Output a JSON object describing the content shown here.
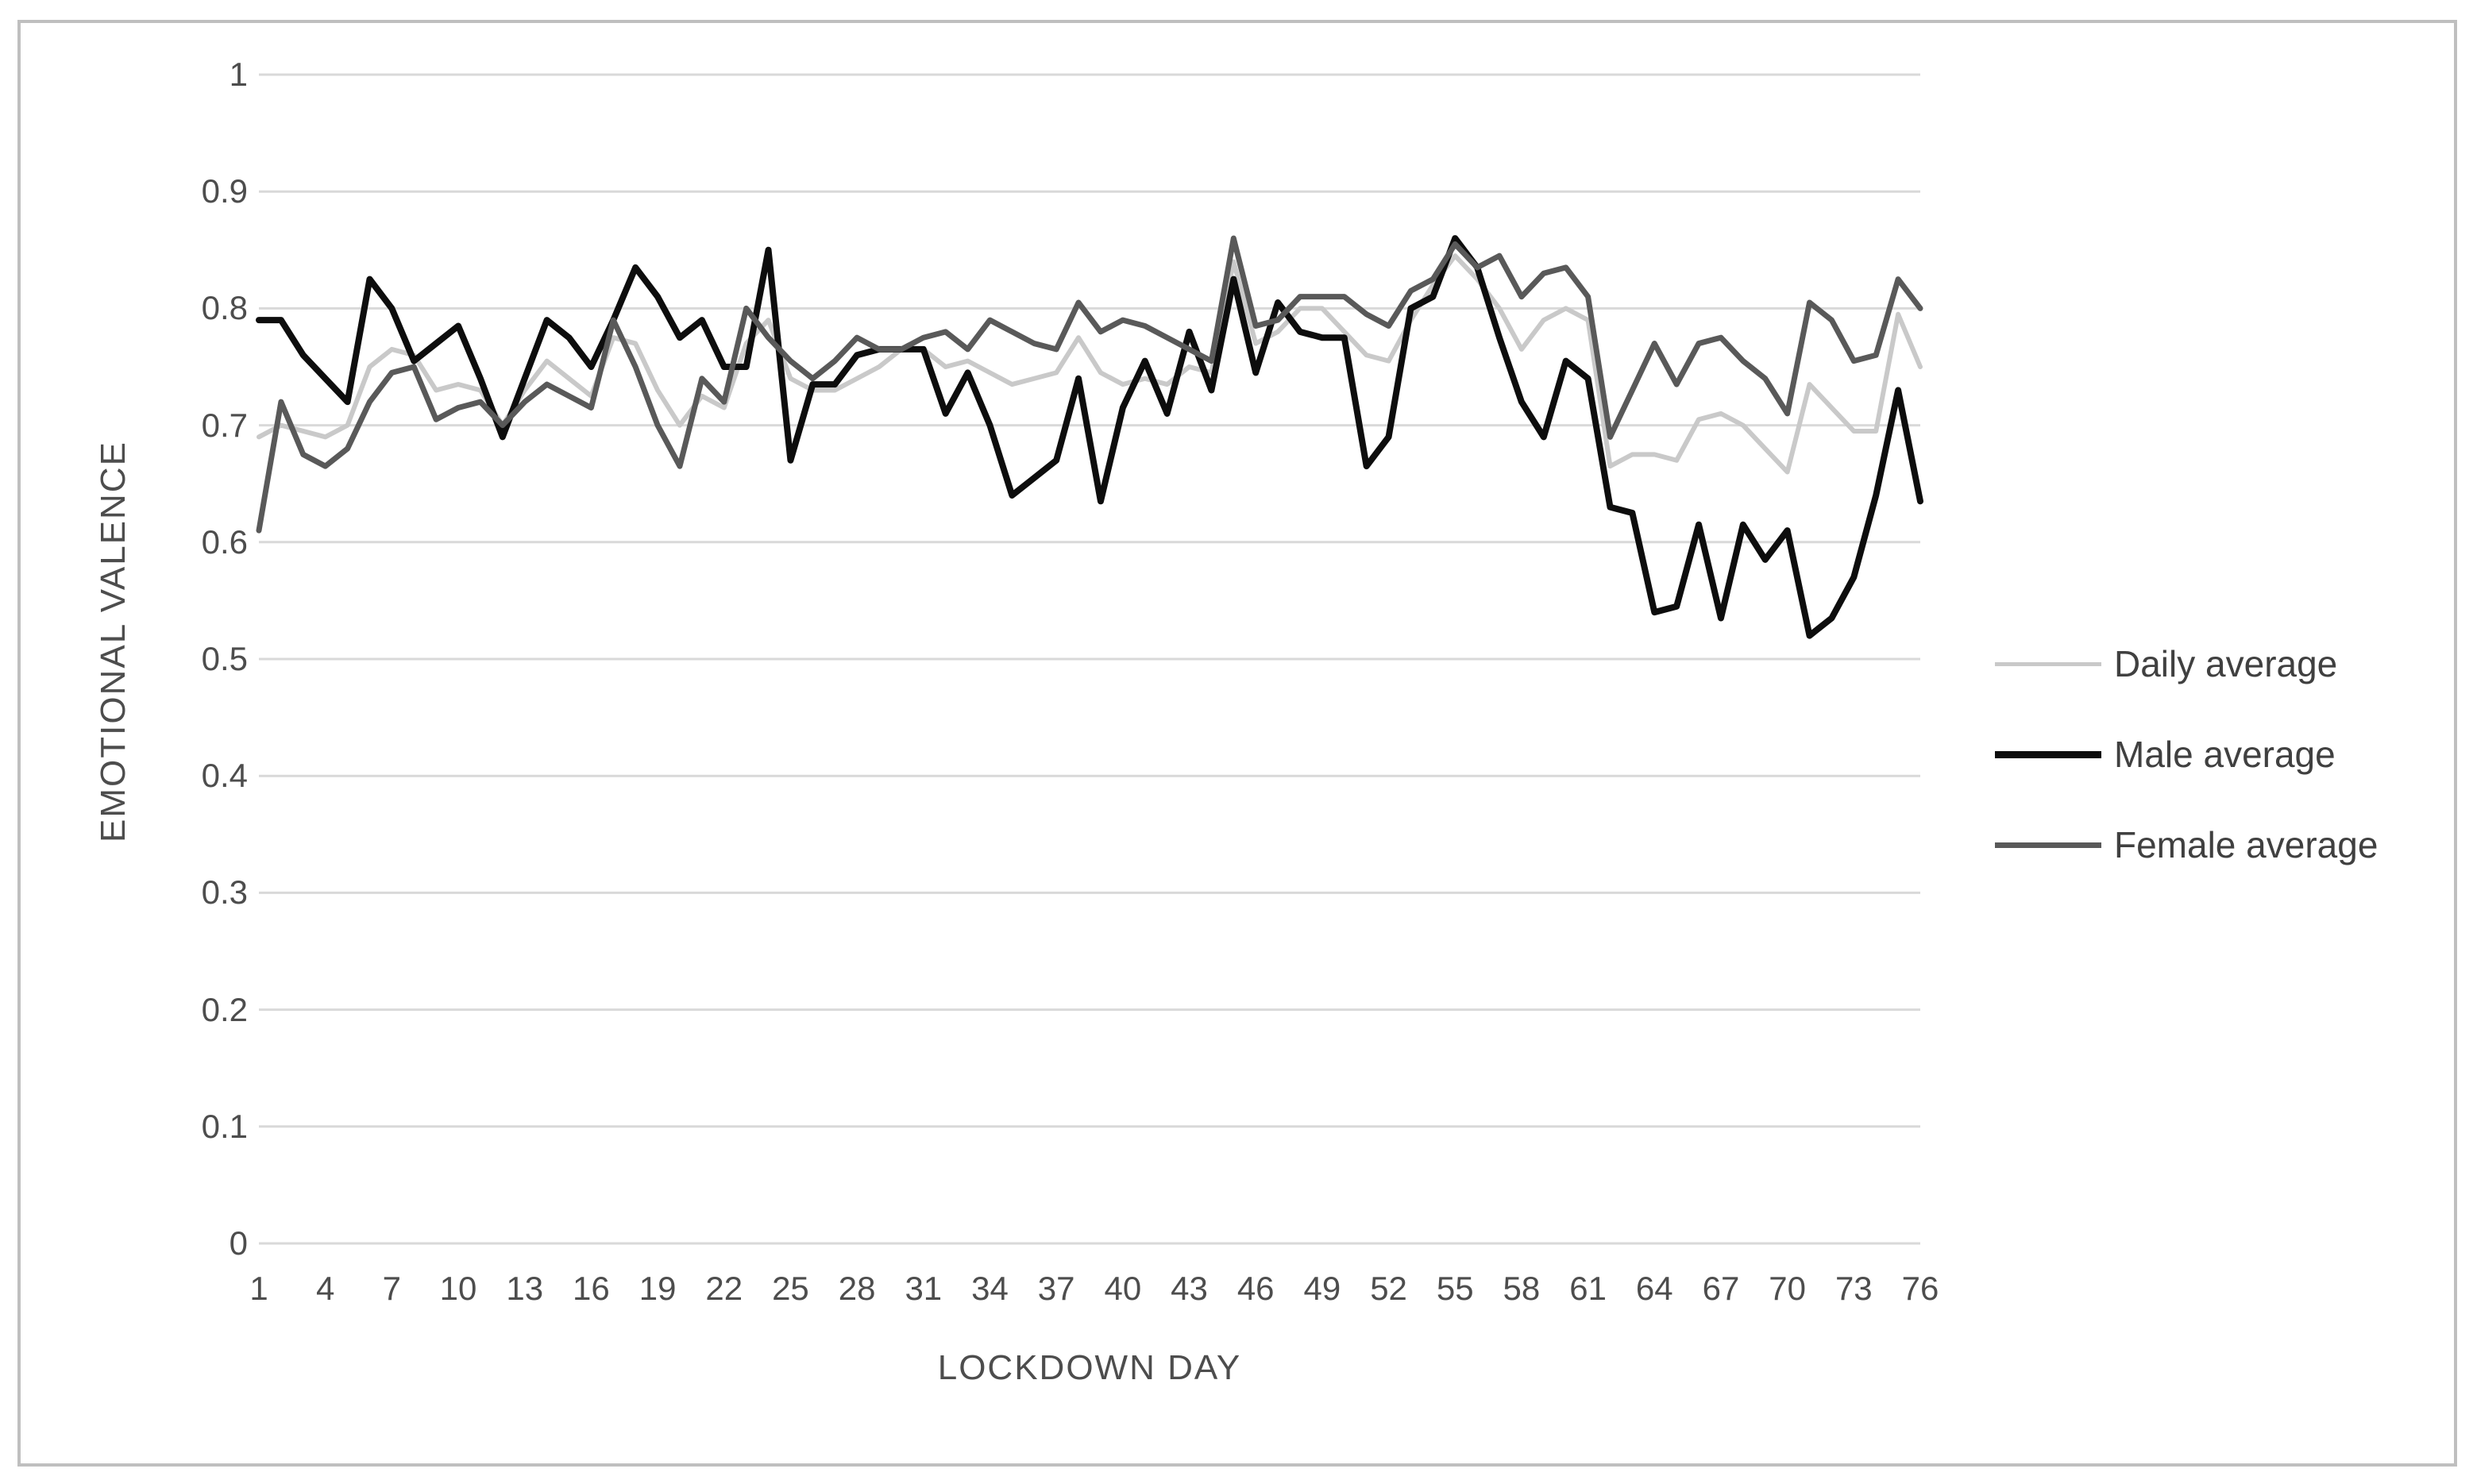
{
  "figure": {
    "type_label": "line chart"
  },
  "y_axis": {
    "title": "EMOTIONAL VALENCE",
    "ticks": [
      "1",
      "0.9",
      "0.8",
      "0.7",
      "0.6",
      "0.5",
      "0.4",
      "0.3",
      "0.2",
      "0.1",
      "0"
    ]
  },
  "x_axis": {
    "title": "LOCKDOWN DAY",
    "tick_days": [
      1,
      4,
      7,
      10,
      13,
      16,
      19,
      22,
      25,
      28,
      31,
      34,
      37,
      40,
      43,
      46,
      49,
      52,
      55,
      58,
      61,
      64,
      67,
      70,
      73,
      76
    ]
  },
  "legend": {
    "entries": [
      {
        "label": "Daily average",
        "color": "#c9c9c9",
        "thickness": 5
      },
      {
        "label": "Male average",
        "color": "#0d0d0d",
        "thickness": 9
      },
      {
        "label": "Female average",
        "color": "#595959",
        "thickness": 7
      }
    ]
  },
  "colors": {
    "gridline": "#d9d9d9",
    "border": "#bfbfbf",
    "axis_text": "#4d4d4d"
  },
  "chart_data": {
    "type": "line",
    "title": "",
    "xlabel": "LOCKDOWN DAY",
    "ylabel": "EMOTIONAL VALENCE",
    "xlim": [
      1,
      76
    ],
    "ylim": [
      0,
      1
    ],
    "y_gridline_step": 0.1,
    "grid": "horizontal",
    "legend_position": "right",
    "x": [
      1,
      2,
      3,
      4,
      5,
      6,
      7,
      8,
      9,
      10,
      11,
      12,
      13,
      14,
      15,
      16,
      17,
      18,
      19,
      20,
      21,
      22,
      23,
      24,
      25,
      26,
      27,
      28,
      29,
      30,
      31,
      32,
      33,
      34,
      35,
      36,
      37,
      38,
      39,
      40,
      41,
      42,
      43,
      44,
      45,
      46,
      47,
      48,
      49,
      50,
      51,
      52,
      53,
      54,
      55,
      56,
      57,
      58,
      59,
      60,
      61,
      62,
      63,
      64,
      65,
      66,
      67,
      68,
      69,
      70,
      71,
      72,
      73,
      74,
      75,
      76
    ],
    "series": [
      {
        "name": "Daily average",
        "color": "#c9c9c9",
        "stroke_width": 6,
        "values": [
          0.69,
          0.7,
          0.695,
          0.69,
          0.7,
          0.75,
          0.765,
          0.76,
          0.73,
          0.735,
          0.73,
          0.7,
          0.73,
          0.755,
          0.74,
          0.725,
          0.775,
          0.77,
          0.73,
          0.7,
          0.725,
          0.715,
          0.77,
          0.79,
          0.74,
          0.73,
          0.73,
          0.74,
          0.75,
          0.765,
          0.765,
          0.75,
          0.755,
          0.745,
          0.735,
          0.74,
          0.745,
          0.775,
          0.745,
          0.735,
          0.74,
          0.735,
          0.75,
          0.745,
          0.84,
          0.77,
          0.78,
          0.8,
          0.8,
          0.78,
          0.76,
          0.755,
          0.79,
          0.82,
          0.845,
          0.825,
          0.8,
          0.765,
          0.79,
          0.8,
          0.79,
          0.665,
          0.675,
          0.675,
          0.67,
          0.705,
          0.71,
          0.7,
          0.68,
          0.66,
          0.735,
          0.715,
          0.695,
          0.695,
          0.795,
          0.75
        ]
      },
      {
        "name": "Male average",
        "color": "#0d0d0d",
        "stroke_width": 8,
        "values": [
          0.79,
          0.79,
          0.76,
          0.74,
          0.72,
          0.825,
          0.8,
          0.755,
          0.77,
          0.785,
          0.74,
          0.69,
          0.74,
          0.79,
          0.775,
          0.75,
          0.79,
          0.835,
          0.81,
          0.775,
          0.79,
          0.75,
          0.75,
          0.85,
          0.67,
          0.735,
          0.735,
          0.76,
          0.765,
          0.765,
          0.765,
          0.71,
          0.745,
          0.7,
          0.64,
          0.655,
          0.67,
          0.74,
          0.635,
          0.715,
          0.755,
          0.71,
          0.78,
          0.73,
          0.825,
          0.745,
          0.805,
          0.78,
          0.775,
          0.775,
          0.665,
          0.69,
          0.8,
          0.81,
          0.86,
          0.835,
          0.775,
          0.72,
          0.69,
          0.755,
          0.74,
          0.63,
          0.625,
          0.54,
          0.545,
          0.615,
          0.535,
          0.615,
          0.585,
          0.61,
          0.52,
          0.535,
          0.57,
          0.64,
          0.73,
          0.635
        ]
      },
      {
        "name": "Female average",
        "color": "#595959",
        "stroke_width": 7,
        "values": [
          0.61,
          0.72,
          0.675,
          0.665,
          0.68,
          0.72,
          0.745,
          0.75,
          0.705,
          0.715,
          0.72,
          0.7,
          0.72,
          0.735,
          0.725,
          0.715,
          0.79,
          0.75,
          0.7,
          0.665,
          0.74,
          0.72,
          0.8,
          0.775,
          0.755,
          0.74,
          0.755,
          0.775,
          0.765,
          0.765,
          0.775,
          0.78,
          0.765,
          0.79,
          0.78,
          0.77,
          0.765,
          0.805,
          0.78,
          0.79,
          0.785,
          0.775,
          0.765,
          0.755,
          0.86,
          0.785,
          0.79,
          0.81,
          0.81,
          0.81,
          0.795,
          0.785,
          0.815,
          0.825,
          0.855,
          0.835,
          0.845,
          0.81,
          0.83,
          0.835,
          0.81,
          0.69,
          0.73,
          0.77,
          0.735,
          0.77,
          0.775,
          0.755,
          0.74,
          0.71,
          0.805,
          0.79,
          0.755,
          0.76,
          0.825,
          0.8
        ]
      }
    ]
  }
}
